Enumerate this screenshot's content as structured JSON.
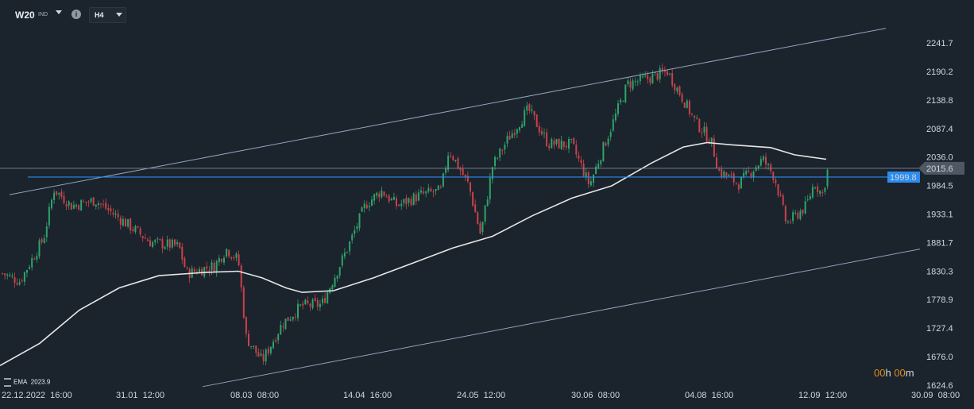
{
  "toolbar": {
    "symbol": "W20",
    "symbol_suffix": "IND",
    "info_icon": "i",
    "timeframe": "H4"
  },
  "legend": {
    "indicator": "EMA",
    "value": "2023.9"
  },
  "timer": {
    "h_value": "00",
    "h_unit": "h",
    "m_value": "00",
    "m_unit": "m"
  },
  "colors": {
    "background": "#1b232c",
    "up": "#2fa36b",
    "down": "#c9424a",
    "ema": "#e6e6e6",
    "channel": "#8fa3bd",
    "hline": "#2b8cf0"
  },
  "chart_data": {
    "type": "candlestick",
    "y_ticks": [
      "2241.7",
      "2190.2",
      "2138.8",
      "2087.4",
      "2036.0",
      "1984.5",
      "1933.1",
      "1881.7",
      "1830.3",
      "1778.9",
      "1727.4",
      "1676.0",
      "1624.6"
    ],
    "x_ticks": [
      "22.12.2022  16:00",
      "31.01  12:00",
      "08.03  08:00",
      "14.04  16:00",
      "24.05  12:00",
      "30.06  08:00",
      "04.08  16:00",
      "12.09  12:00",
      "30.09  08:00"
    ],
    "ylim": [
      1620,
      2268
    ],
    "price_marker": "2015.6",
    "level_marker": "1999.8",
    "price_path": [
      [
        0,
        1828
      ],
      [
        25,
        1812
      ],
      [
        55,
        1890
      ],
      [
        68,
        1978
      ],
      [
        90,
        1948
      ],
      [
        120,
        1958
      ],
      [
        160,
        1915
      ],
      [
        190,
        1882
      ],
      [
        225,
        1875
      ],
      [
        235,
        1826
      ],
      [
        270,
        1840
      ],
      [
        285,
        1870
      ],
      [
        300,
        1850
      ],
      [
        310,
        1710
      ],
      [
        330,
        1668
      ],
      [
        355,
        1735
      ],
      [
        380,
        1768
      ],
      [
        405,
        1770
      ],
      [
        440,
        1880
      ],
      [
        460,
        1950
      ],
      [
        480,
        1975
      ],
      [
        500,
        1948
      ],
      [
        530,
        1968
      ],
      [
        555,
        1975
      ],
      [
        565,
        2050
      ],
      [
        590,
        1985
      ],
      [
        605,
        1895
      ],
      [
        620,
        2020
      ],
      [
        640,
        2070
      ],
      [
        665,
        2122
      ],
      [
        690,
        2060
      ],
      [
        720,
        2058
      ],
      [
        742,
        1985
      ],
      [
        760,
        2055
      ],
      [
        790,
        2168
      ],
      [
        810,
        2175
      ],
      [
        840,
        2190
      ],
      [
        860,
        2140
      ],
      [
        875,
        2100
      ],
      [
        895,
        2065
      ],
      [
        905,
        2010
      ],
      [
        930,
        1988
      ],
      [
        960,
        2032
      ],
      [
        975,
        2000
      ],
      [
        990,
        1915
      ],
      [
        1015,
        1948
      ],
      [
        1025,
        1990
      ],
      [
        1035,
        1968
      ],
      [
        1042,
        2014
      ]
    ],
    "ema_path": [
      [
        0,
        1660
      ],
      [
        50,
        1700
      ],
      [
        100,
        1760
      ],
      [
        150,
        1800
      ],
      [
        200,
        1822
      ],
      [
        260,
        1828
      ],
      [
        300,
        1830
      ],
      [
        330,
        1818
      ],
      [
        360,
        1800
      ],
      [
        380,
        1792
      ],
      [
        420,
        1795
      ],
      [
        470,
        1818
      ],
      [
        520,
        1845
      ],
      [
        570,
        1872
      ],
      [
        620,
        1893
      ],
      [
        670,
        1930
      ],
      [
        720,
        1962
      ],
      [
        770,
        1984
      ],
      [
        820,
        2025
      ],
      [
        860,
        2054
      ],
      [
        890,
        2062
      ],
      [
        920,
        2058
      ],
      [
        970,
        2053
      ],
      [
        1000,
        2040
      ],
      [
        1040,
        2032
      ]
    ],
    "channel_upper": [
      [
        12,
        1968
      ],
      [
        1115,
        2268
      ]
    ],
    "channel_lower": [
      [
        255,
        1622
      ],
      [
        1158,
        1870
      ]
    ]
  }
}
